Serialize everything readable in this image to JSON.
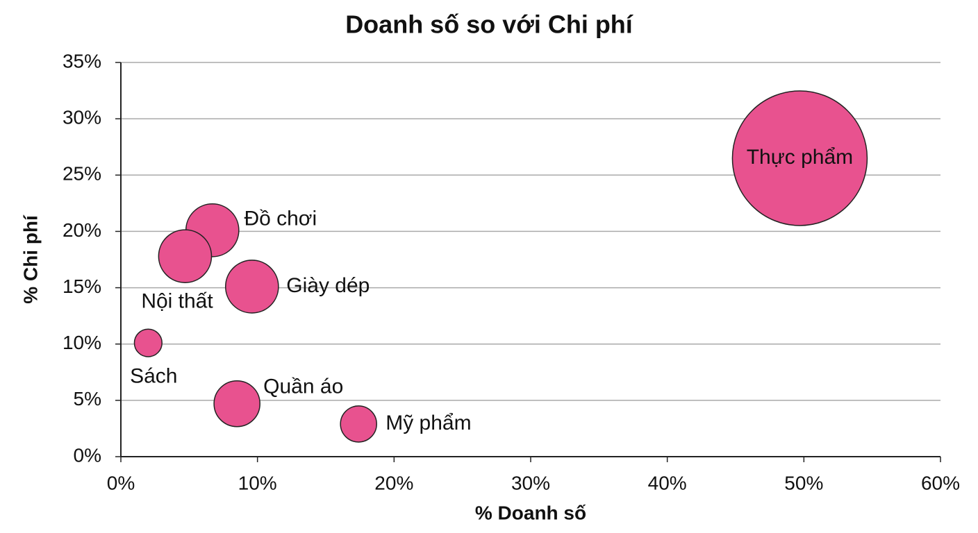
{
  "chart_data": {
    "type": "bubble",
    "title": "Doanh số so với Chi phí",
    "x_label": "% Doanh số",
    "y_label": "% Chi phí",
    "categories": [
      "Thực phẩm",
      "Đồ chơi",
      "Nội thất",
      "Giày dép",
      "Sách",
      "Quần áo",
      "Mỹ phẩm"
    ],
    "x": [
      49.7,
      6.7,
      4.7,
      9.6,
      2.0,
      8.5,
      17.4
    ],
    "values": [
      26.5,
      20.1,
      17.8,
      15.1,
      10.1,
      4.7,
      2.9
    ],
    "sizes": [
      50,
      7.7,
      7.7,
      7.7,
      2.1,
      5.8,
      3.6
    ],
    "color": "#e8528f",
    "xlim": [
      0,
      60
    ],
    "xticks": [
      {
        "value": 0,
        "label": "0%"
      },
      {
        "value": 10,
        "label": "10%"
      },
      {
        "value": 20,
        "label": "20%"
      },
      {
        "value": 30,
        "label": "30%"
      },
      {
        "value": 40,
        "label": "40%"
      },
      {
        "value": 50,
        "label": "50%"
      },
      {
        "value": 60,
        "label": "60%"
      }
    ],
    "ylim": [
      0,
      35
    ],
    "yticks": [
      {
        "value": 0,
        "label": "0%"
      },
      {
        "value": 5,
        "label": "5%"
      },
      {
        "value": 10,
        "label": "10%"
      },
      {
        "value": 15,
        "label": "15%"
      },
      {
        "value": 20,
        "label": "20%"
      },
      {
        "value": 25,
        "label": "25%"
      },
      {
        "value": 30,
        "label": "30%"
      },
      {
        "value": 35,
        "label": "35%"
      }
    ],
    "grid": true
  }
}
